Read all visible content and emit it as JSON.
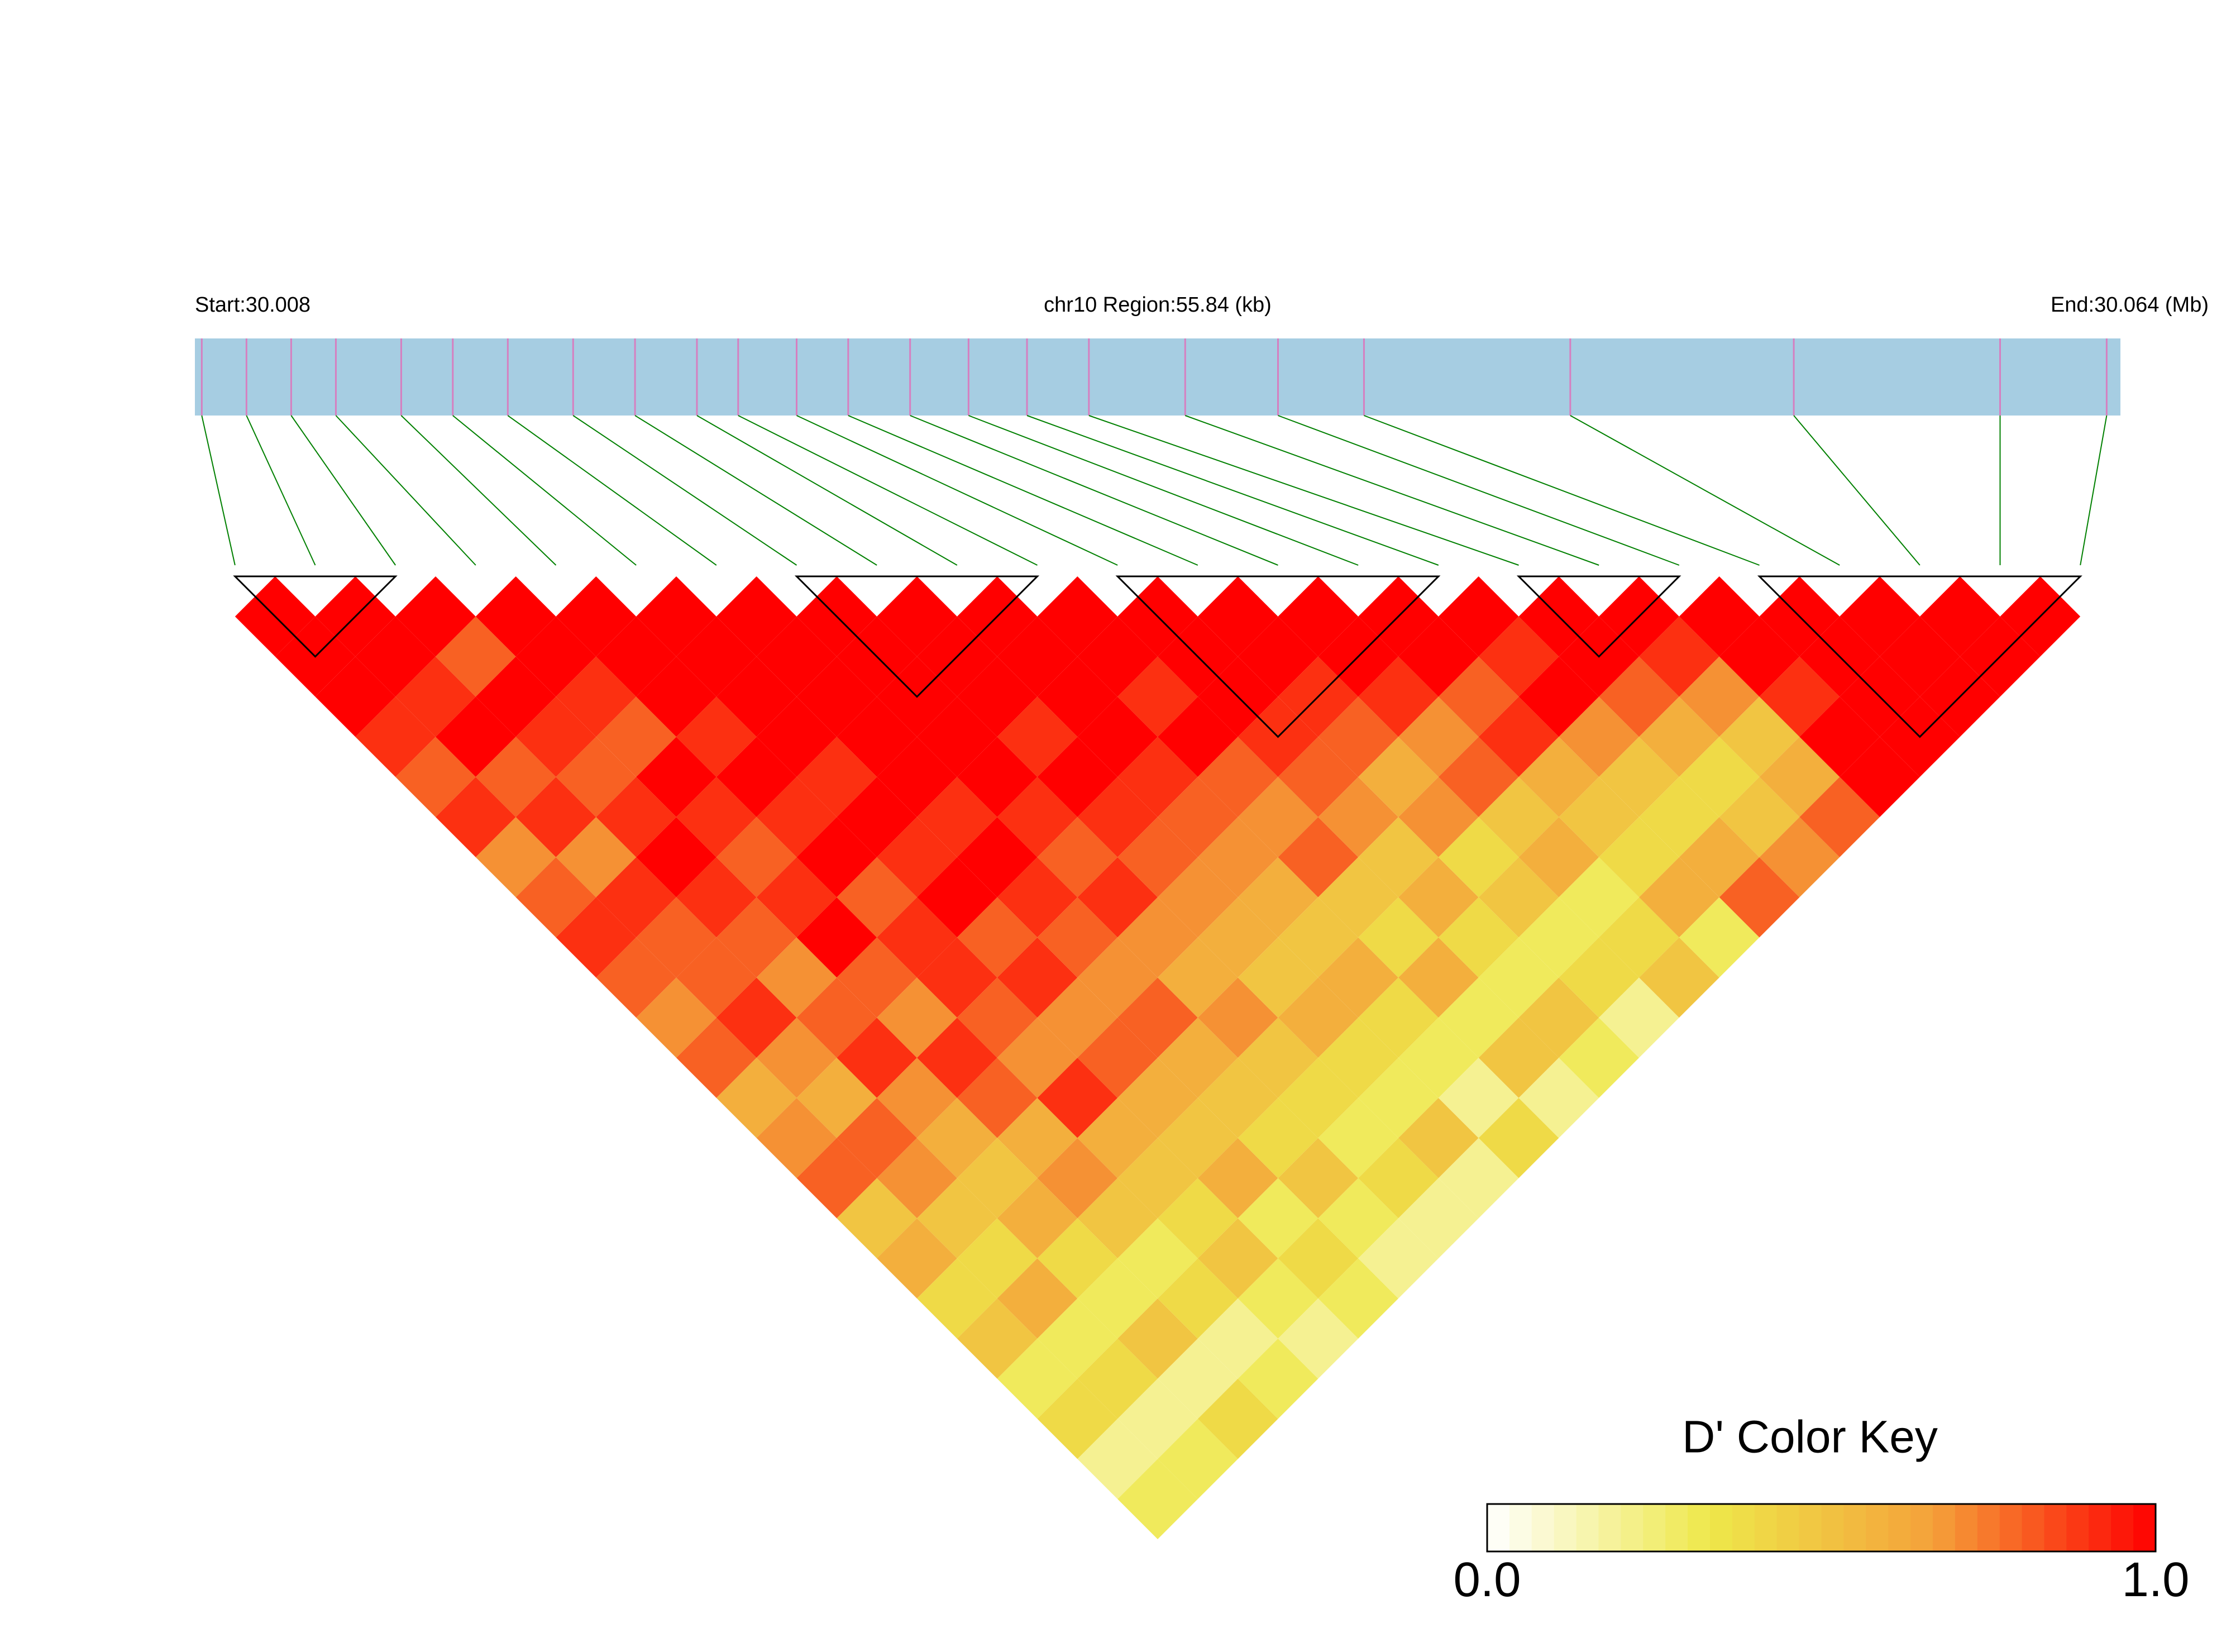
{
  "chart_data": {
    "type": "ld_heatmap",
    "title": "chr10 Region:55.84 (kb)",
    "start_label": "Start:30.008",
    "end_label": "End:30.064 (Mb)",
    "xlim": [
      30.008,
      30.064
    ],
    "positions": [
      30.0082,
      30.0095,
      30.0108,
      30.0121,
      30.014,
      30.0155,
      30.0171,
      30.019,
      30.0208,
      30.0226,
      30.0238,
      30.0255,
      30.027,
      30.0288,
      30.0305,
      30.0322,
      30.034,
      30.0368,
      30.0395,
      30.042,
      30.048,
      30.0545,
      30.0605,
      30.0636
    ],
    "region_color": "#a6cde2",
    "snp_color": "#d67fc0",
    "link_color": "#008000",
    "values": [
      [
        1,
        1,
        1,
        0.9,
        0.8,
        0.9,
        0.7,
        0.8,
        0.9,
        0.8,
        0.7,
        0.8,
        0.6,
        0.7,
        0.8,
        0.5,
        0.6,
        0.4,
        0.5,
        0.3,
        0.4,
        0.2,
        0.3
      ],
      [
        1,
        1,
        0.9,
        1,
        0.8,
        0.9,
        0.7,
        0.9,
        0.8,
        0.8,
        0.9,
        0.7,
        0.6,
        0.8,
        0.7,
        0.5,
        0.4,
        0.6,
        0.3,
        0.4,
        0.2,
        0.3
      ],
      [
        1,
        0.8,
        1,
        0.9,
        0.8,
        0.9,
        1,
        0.9,
        0.8,
        0.7,
        0.8,
        0.9,
        0.7,
        0.6,
        0.5,
        0.6,
        0.4,
        0.3,
        0.5,
        0.2,
        0.4
      ],
      [
        1,
        1,
        0.9,
        0.8,
        1,
        0.9,
        0.8,
        0.9,
        1,
        0.8,
        0.7,
        0.9,
        0.8,
        0.6,
        0.7,
        0.5,
        0.3,
        0.4,
        0.2,
        0.3
      ],
      [
        1,
        1,
        1,
        0.9,
        1,
        0.9,
        1,
        0.8,
        0.9,
        0.9,
        0.8,
        0.7,
        0.9,
        0.6,
        0.5,
        0.4,
        0.5,
        0.3,
        0.2
      ],
      [
        1,
        1,
        1,
        1,
        0.9,
        1,
        0.9,
        1,
        0.8,
        0.9,
        0.7,
        0.8,
        0.6,
        0.5,
        0.6,
        0.3,
        0.4,
        0.3
      ],
      [
        1,
        1,
        1,
        1,
        1,
        0.9,
        1,
        0.9,
        0.8,
        0.7,
        0.8,
        0.6,
        0.5,
        0.4,
        0.5,
        0.3,
        0.2
      ],
      [
        1,
        1,
        1,
        1,
        1,
        0.9,
        0.8,
        0.9,
        0.7,
        0.6,
        0.7,
        0.5,
        0.4,
        0.3,
        0.4,
        0.2
      ],
      [
        1,
        1,
        1,
        0.9,
        1,
        0.9,
        0.8,
        0.7,
        0.6,
        0.5,
        0.6,
        0.4,
        0.3,
        0.5,
        0.2
      ],
      [
        1,
        1,
        1,
        1,
        0.9,
        0.8,
        0.7,
        0.6,
        0.5,
        0.6,
        0.4,
        0.3,
        0.2,
        0.4
      ],
      [
        1,
        1,
        0.9,
        1,
        0.8,
        0.7,
        0.8,
        0.5,
        0.4,
        0.6,
        0.3,
        0.5,
        0.2
      ],
      [
        1,
        1,
        1,
        0.9,
        0.8,
        0.7,
        0.5,
        0.6,
        0.4,
        0.3,
        0.5,
        0.3
      ],
      [
        1,
        1,
        0.9,
        0.8,
        0.6,
        0.7,
        0.4,
        0.5,
        0.3,
        0.4,
        0.2
      ],
      [
        1,
        1,
        0.9,
        0.7,
        0.8,
        0.5,
        0.6,
        0.3,
        0.4,
        0.5
      ],
      [
        1,
        1,
        0.8,
        0.9,
        0.6,
        0.5,
        0.4,
        0.6,
        0.3
      ],
      [
        1,
        0.9,
        1,
        0.7,
        0.5,
        0.4,
        0.6,
        0.8
      ],
      [
        1,
        1,
        0.8,
        0.6,
        0.4,
        0.5,
        0.7
      ],
      [
        1,
        0.9,
        0.7,
        0.5,
        0.6,
        0.8
      ],
      [
        1,
        1,
        0.9,
        1,
        1
      ],
      [
        1,
        1,
        1,
        1
      ],
      [
        1,
        1,
        1
      ],
      [
        1,
        1
      ],
      [
        1
      ]
    ],
    "blocks": [
      [
        0,
        2
      ],
      [
        7,
        10
      ],
      [
        11,
        15
      ],
      [
        16,
        18
      ],
      [
        19,
        23
      ]
    ],
    "colorbar": {
      "title": "D' Color Key",
      "lim": [
        0,
        1
      ],
      "ticks": [
        {
          "value": 0,
          "label": "0.0"
        },
        {
          "value": 1,
          "label": "1.0"
        }
      ],
      "colors": [
        "#ffffff",
        "#eee84a",
        "#f4a13a",
        "#ff0000"
      ]
    }
  }
}
